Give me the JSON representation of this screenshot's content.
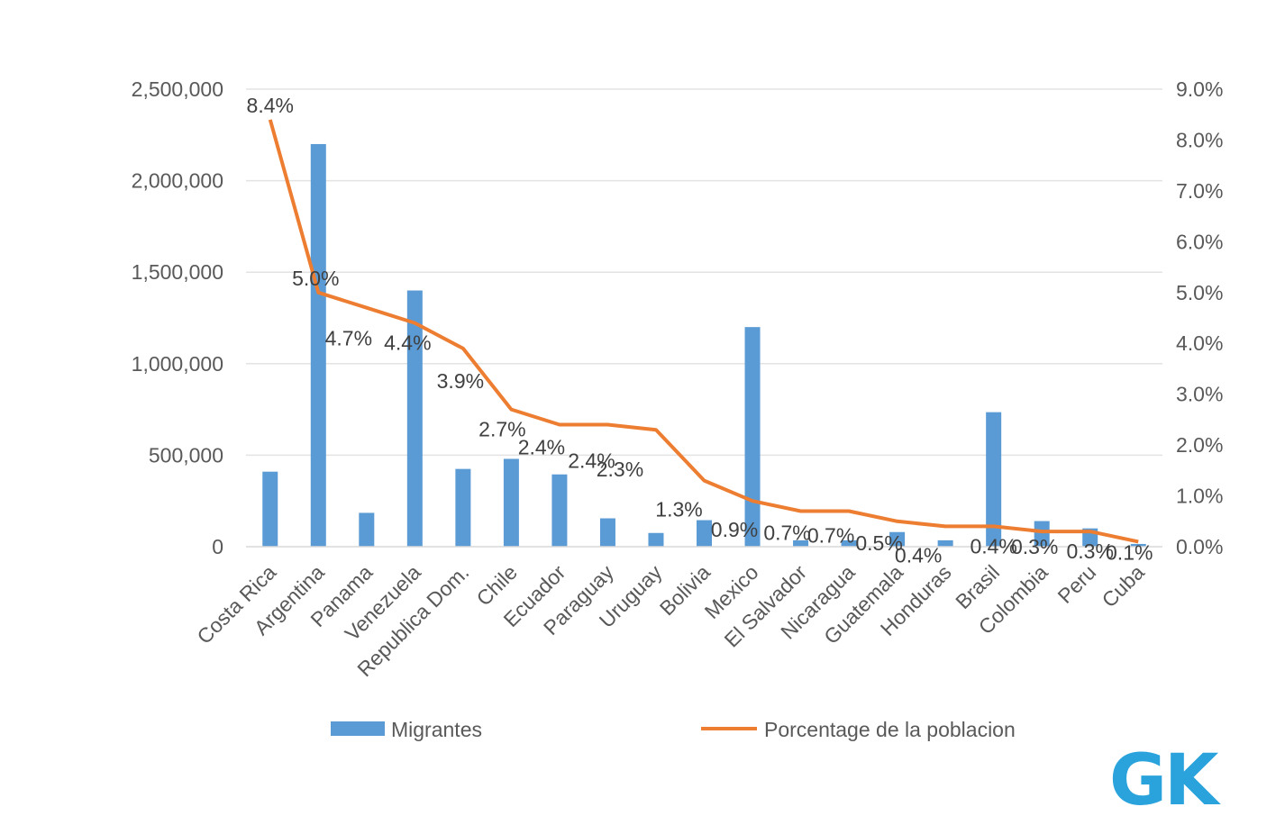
{
  "chart_data": {
    "type": "bar+line",
    "categories": [
      "Costa Rica",
      "Argentina",
      "Panama",
      "Venezuela",
      "Republica Dom.",
      "Chile",
      "Ecuador",
      "Paraguay",
      "Uruguay",
      "Bolivia",
      "Mexico",
      "El Salvador",
      "Nicaragua",
      "Guatemala",
      "Honduras",
      "Brasil",
      "Colombia",
      "Peru",
      "Cuba"
    ],
    "series": [
      {
        "name": "Migrantes",
        "type": "bar",
        "axis": "left",
        "color": "#5b9bd5",
        "values": [
          410000,
          2200000,
          185000,
          1400000,
          425000,
          480000,
          395000,
          155000,
          75000,
          145000,
          1200000,
          35000,
          35000,
          80000,
          35000,
          735000,
          140000,
          100000,
          15000
        ]
      },
      {
        "name": "Porcentage de la poblacion",
        "type": "line",
        "axis": "right",
        "color": "#ed7d31",
        "values": [
          8.4,
          5.0,
          4.7,
          4.4,
          3.9,
          2.7,
          2.4,
          2.4,
          2.3,
          1.3,
          0.9,
          0.7,
          0.7,
          0.5,
          0.4,
          0.4,
          0.3,
          0.3,
          0.1
        ],
        "labels": [
          "8.4%",
          "5.0%",
          "4.7%",
          "4.4%",
          "3.9%",
          "2.7%",
          "2.4%",
          "2.4%",
          "2.3%",
          "1.3%",
          "0.9%",
          "0.7%",
          "0.7%",
          "0.5%",
          "0.4%",
          "0.4%",
          "0.3%",
          "0.3%",
          "0.1%"
        ]
      }
    ],
    "y_left": {
      "ylim": [
        0,
        2500000
      ],
      "ticks": [
        0,
        500000,
        1000000,
        1500000,
        2000000,
        2500000
      ],
      "tick_labels": [
        "0",
        "500,000",
        "1,000,000",
        "1,500,000",
        "2,000,000",
        "2,500,000"
      ]
    },
    "y_right": {
      "ylim": [
        0,
        9
      ],
      "ticks": [
        0,
        1,
        2,
        3,
        4,
        5,
        6,
        7,
        8,
        9
      ],
      "tick_labels": [
        "0.0%",
        "1.0%",
        "2.0%",
        "3.0%",
        "4.0%",
        "5.0%",
        "6.0%",
        "7.0%",
        "8.0%",
        "9.0%"
      ]
    },
    "grid": true,
    "legend": [
      "Migrantes",
      "Porcentage de la poblacion"
    ],
    "legend_position": "bottom"
  },
  "logo": {
    "text": "GK",
    "color": "#2aa3dd"
  }
}
